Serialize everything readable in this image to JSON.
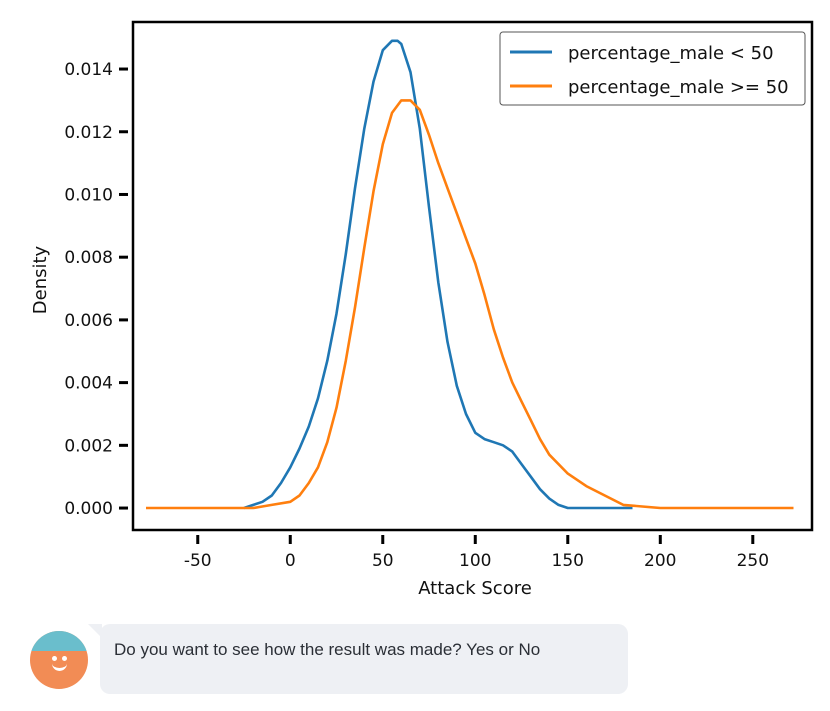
{
  "chart_data": {
    "type": "line",
    "title": "",
    "xlabel": "Attack Score",
    "ylabel": "Density",
    "xlim": [
      -85,
      282
    ],
    "ylim": [
      -0.0007,
      0.0155
    ],
    "x_ticks": [
      -50,
      0,
      50,
      100,
      150,
      200,
      250
    ],
    "x_tick_labels": [
      "-50",
      "0",
      "50",
      "100",
      "150",
      "200",
      "250"
    ],
    "y_ticks": [
      0.0,
      0.002,
      0.004,
      0.006,
      0.008,
      0.01,
      0.012,
      0.014
    ],
    "y_tick_labels": [
      "0.000",
      "0.002",
      "0.004",
      "0.006",
      "0.008",
      "0.010",
      "0.012",
      "0.014"
    ],
    "grid": false,
    "legend_position": "top-right",
    "series": [
      {
        "name": "percentage_male < 50",
        "color": "#1f77b4",
        "x": [
          -25,
          -20,
          -15,
          -10,
          -5,
          0,
          5,
          10,
          15,
          20,
          25,
          30,
          35,
          40,
          45,
          50,
          55,
          58,
          60,
          65,
          70,
          75,
          80,
          85,
          90,
          95,
          100,
          105,
          110,
          115,
          120,
          125,
          130,
          135,
          140,
          145,
          150,
          160,
          170,
          185
        ],
        "y": [
          0.0,
          0.0001,
          0.0002,
          0.0004,
          0.0008,
          0.0013,
          0.0019,
          0.0026,
          0.0035,
          0.0047,
          0.0062,
          0.0081,
          0.0102,
          0.0121,
          0.0136,
          0.0146,
          0.0149,
          0.0149,
          0.0148,
          0.0139,
          0.0121,
          0.0096,
          0.0072,
          0.0053,
          0.0039,
          0.003,
          0.0024,
          0.0022,
          0.0021,
          0.002,
          0.0018,
          0.0014,
          0.001,
          0.0006,
          0.0003,
          0.0001,
          0.0,
          0.0,
          0.0,
          0.0
        ]
      },
      {
        "name": "percentage_male >= 50",
        "color": "#ff7f0e",
        "x": [
          -78,
          -60,
          -40,
          -20,
          -10,
          0,
          5,
          10,
          15,
          20,
          25,
          30,
          35,
          40,
          45,
          50,
          55,
          60,
          63,
          65,
          70,
          75,
          80,
          85,
          90,
          95,
          100,
          105,
          110,
          115,
          120,
          125,
          130,
          135,
          140,
          150,
          160,
          170,
          180,
          200,
          230,
          272
        ],
        "y": [
          0.0,
          0.0,
          0.0,
          0.0,
          0.0001,
          0.0002,
          0.0004,
          0.0008,
          0.0013,
          0.0021,
          0.0032,
          0.0047,
          0.0064,
          0.0083,
          0.0101,
          0.0116,
          0.0126,
          0.013,
          0.013,
          0.013,
          0.0127,
          0.0119,
          0.011,
          0.0102,
          0.0094,
          0.0086,
          0.0078,
          0.0068,
          0.0057,
          0.0048,
          0.004,
          0.0034,
          0.0028,
          0.0022,
          0.0017,
          0.0011,
          0.0007,
          0.0004,
          0.0001,
          0.0,
          0.0,
          0.0
        ]
      }
    ]
  },
  "chat": {
    "message": "Do you want to see how the result was made? Yes or No",
    "avatar_color": "#f28c55",
    "avatar_accent": "#5bc3d9"
  }
}
